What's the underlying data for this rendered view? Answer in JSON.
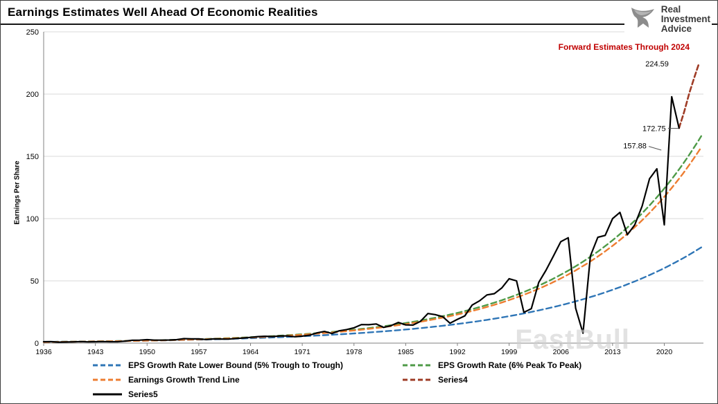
{
  "header": {
    "logo": {
      "line1": "Real",
      "line2": "Investment",
      "line3": "Advice"
    }
  },
  "chart_data": {
    "type": "line",
    "title": "Earnings Estimates Well Ahead Of Economic Realities",
    "annotation": "Forward Estimates Through 2024",
    "watermark": "FastBull",
    "xlabel": "",
    "ylabel": "Earnings Per Share",
    "xlim": [
      1936,
      2025.3
    ],
    "ylim": [
      0,
      250
    ],
    "yticks": [
      0,
      50,
      100,
      150,
      200,
      250
    ],
    "xticks": [
      1936,
      1943,
      1950,
      1957,
      1964,
      1971,
      1978,
      1985,
      1992,
      1999,
      2006,
      2013,
      2020
    ],
    "grid": "horizontal",
    "legend_position": "bottom",
    "value_labels": [
      {
        "text": "224.59",
        "x": 2020.6,
        "y": 224.5,
        "leader": null
      },
      {
        "text": "172.75",
        "x": 2020.2,
        "y": 172.5,
        "leader": [
          2020.5,
          172.5,
          2021.9,
          172.5
        ]
      },
      {
        "text": "157.88",
        "x": 2017.6,
        "y": 158.5,
        "leader": [
          2017.9,
          158.0,
          2019.6,
          155.0
        ]
      }
    ],
    "series": [
      {
        "name": "EPS Growth Rate Lower Bound (5% Trough to Trough)",
        "color": "#2E75B6",
        "style": "dashed",
        "dash": "8 5",
        "width": 2.4,
        "model": "exponential",
        "x_start": 1936,
        "x_end": 2025.3,
        "start_value": 1.0,
        "growth_rate": 0.05
      },
      {
        "name": "EPS Growth Rate (6% Peak To Peak)",
        "color": "#4E9A47",
        "style": "dashed",
        "dash": "8 5",
        "width": 2.4,
        "model": "exponential",
        "x_start": 1936,
        "x_end": 2025.3,
        "start_value": 0.93,
        "growth_rate": 0.06
      },
      {
        "name": "Earnings Growth Trend Line",
        "color": "#ED7D31",
        "style": "dashed",
        "dash": "8 5",
        "width": 2.4,
        "model": "exponential",
        "x_start": 1936,
        "x_end": 2025.3,
        "start_value": 0.88,
        "growth_rate": 0.06
      },
      {
        "name": "Series4",
        "color": "#9E3B25",
        "style": "dashed",
        "dash": "7 4",
        "width": 2.6,
        "model": "points",
        "points": [
          [
            2022,
            172.75
          ],
          [
            2022.7,
            186
          ],
          [
            2023.4,
            201
          ],
          [
            2024.1,
            214
          ],
          [
            2024.7,
            224.59
          ]
        ]
      },
      {
        "name": "Series5",
        "color": "#000000",
        "style": "solid",
        "dash": "",
        "width": 2.2,
        "model": "points",
        "points": [
          [
            1936,
            1.1
          ],
          [
            1937,
            1.2
          ],
          [
            1938,
            0.8
          ],
          [
            1939,
            0.9
          ],
          [
            1940,
            1.0
          ],
          [
            1941,
            1.2
          ],
          [
            1942,
            1.0
          ],
          [
            1943,
            1.1
          ],
          [
            1944,
            1.2
          ],
          [
            1945,
            1.1
          ],
          [
            1946,
            1.1
          ],
          [
            1947,
            1.6
          ],
          [
            1948,
            2.3
          ],
          [
            1949,
            2.4
          ],
          [
            1950,
            2.8
          ],
          [
            1951,
            2.4
          ],
          [
            1952,
            2.4
          ],
          [
            1953,
            2.5
          ],
          [
            1954,
            2.8
          ],
          [
            1955,
            3.6
          ],
          [
            1956,
            3.4
          ],
          [
            1957,
            3.4
          ],
          [
            1958,
            2.9
          ],
          [
            1959,
            3.4
          ],
          [
            1960,
            3.3
          ],
          [
            1961,
            3.2
          ],
          [
            1962,
            3.7
          ],
          [
            1963,
            4.1
          ],
          [
            1964,
            4.6
          ],
          [
            1965,
            5.2
          ],
          [
            1966,
            5.5
          ],
          [
            1967,
            5.3
          ],
          [
            1968,
            5.8
          ],
          [
            1969,
            5.8
          ],
          [
            1970,
            5.1
          ],
          [
            1971,
            5.6
          ],
          [
            1972,
            6.4
          ],
          [
            1973,
            8.2
          ],
          [
            1974,
            9.4
          ],
          [
            1975,
            7.7
          ],
          [
            1976,
            9.9
          ],
          [
            1977,
            10.9
          ],
          [
            1978,
            12.3
          ],
          [
            1979,
            14.9
          ],
          [
            1980,
            14.8
          ],
          [
            1981,
            15.4
          ],
          [
            1982,
            12.6
          ],
          [
            1983,
            14.0
          ],
          [
            1984,
            16.6
          ],
          [
            1985,
            14.6
          ],
          [
            1986,
            14.5
          ],
          [
            1987,
            17.5
          ],
          [
            1988,
            23.8
          ],
          [
            1989,
            22.9
          ],
          [
            1990,
            21.3
          ],
          [
            1991,
            16.0
          ],
          [
            1992,
            19.1
          ],
          [
            1993,
            21.9
          ],
          [
            1994,
            30.6
          ],
          [
            1995,
            34.0
          ],
          [
            1996,
            38.7
          ],
          [
            1997,
            39.7
          ],
          [
            1998,
            44.3
          ],
          [
            1999,
            51.7
          ],
          [
            2000,
            50.0
          ],
          [
            2001,
            24.7
          ],
          [
            2002,
            27.6
          ],
          [
            2003,
            48.7
          ],
          [
            2004,
            58.6
          ],
          [
            2005,
            70.0
          ],
          [
            2006,
            81.5
          ],
          [
            2007,
            84.6
          ],
          [
            2008,
            28.0
          ],
          [
            2009,
            8.0
          ],
          [
            2010,
            70.0
          ],
          [
            2011,
            85.0
          ],
          [
            2012,
            86.5
          ],
          [
            2013,
            100.0
          ],
          [
            2014,
            105.0
          ],
          [
            2015,
            87.0
          ],
          [
            2016,
            95.0
          ],
          [
            2017,
            110.0
          ],
          [
            2018,
            132.0
          ],
          [
            2019,
            140.0
          ],
          [
            2020,
            95.0
          ],
          [
            2021,
            197.9
          ],
          [
            2022,
            172.75
          ]
        ]
      }
    ]
  }
}
